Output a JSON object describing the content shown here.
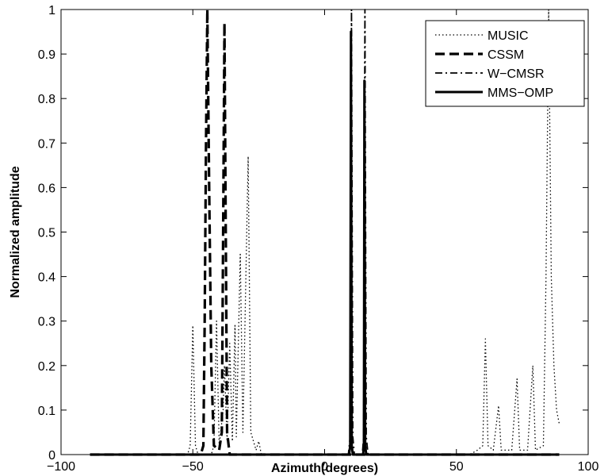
{
  "chart_data": {
    "type": "line",
    "title": "",
    "xlabel": "Azimuth(degrees)",
    "ylabel": "Normalized amplitude",
    "xlim": [
      -100,
      100
    ],
    "ylim": [
      0,
      1
    ],
    "xticks": [
      -100,
      -50,
      0,
      50,
      100
    ],
    "yticks": [
      0,
      0.1,
      0.2,
      0.3,
      0.4,
      0.5,
      0.6,
      0.7,
      0.8,
      0.9,
      1
    ],
    "legend_position": "top-right",
    "grid": false,
    "series": [
      {
        "name": "MUSIC",
        "style": "dotted",
        "color": "#000000",
        "points": [
          [
            -89,
            0.0
          ],
          [
            -52,
            0.0
          ],
          [
            -51,
            0.02
          ],
          [
            -50,
            0.29
          ],
          [
            -49,
            0.02
          ],
          [
            -48,
            0.0
          ],
          [
            -43,
            0.0
          ],
          [
            -42,
            0.02
          ],
          [
            -41,
            0.3
          ],
          [
            -40,
            0.02
          ],
          [
            -38.5,
            0.1
          ],
          [
            -38,
            0.2
          ],
          [
            -37,
            0.03
          ],
          [
            -36,
            0.25
          ],
          [
            -35,
            0.03
          ],
          [
            -34,
            0.29
          ],
          [
            -33.5,
            0.04
          ],
          [
            -32,
            0.45
          ],
          [
            -31,
            0.05
          ],
          [
            -29,
            0.67
          ],
          [
            -28,
            0.05
          ],
          [
            -26,
            0.01
          ],
          [
            -25,
            0.03
          ],
          [
            -24,
            0.0
          ],
          [
            55,
            0.0
          ],
          [
            58,
            0.01
          ],
          [
            60,
            0.02
          ],
          [
            61,
            0.26
          ],
          [
            62,
            0.02
          ],
          [
            64,
            0.01
          ],
          [
            66,
            0.11
          ],
          [
            67,
            0.01
          ],
          [
            70,
            0.01
          ],
          [
            71,
            0.01
          ],
          [
            73,
            0.17
          ],
          [
            74,
            0.01
          ],
          [
            77,
            0.01
          ],
          [
            79,
            0.2
          ],
          [
            80,
            0.01
          ],
          [
            83,
            0.02
          ],
          [
            84,
            0.4
          ],
          [
            85,
            1.0
          ],
          [
            86,
            0.4
          ],
          [
            87,
            0.2
          ],
          [
            88,
            0.1
          ],
          [
            89,
            0.07
          ]
        ]
      },
      {
        "name": "CSSM",
        "style": "dashed",
        "color": "#000000",
        "points": [
          [
            -89,
            0.0
          ],
          [
            -47,
            0.0
          ],
          [
            -46,
            0.02
          ],
          [
            -45.5,
            0.3
          ],
          [
            -45,
            0.7
          ],
          [
            -44.5,
            1.0
          ],
          [
            -43.8,
            0.6
          ],
          [
            -43,
            0.2
          ],
          [
            -42,
            0.02
          ],
          [
            -40,
            0.01
          ],
          [
            -39,
            0.05
          ],
          [
            -38.5,
            0.5
          ],
          [
            -38,
            0.97
          ],
          [
            -37.5,
            0.5
          ],
          [
            -37,
            0.05
          ],
          [
            -36,
            0.0
          ],
          [
            89,
            0.0
          ]
        ]
      },
      {
        "name": "W−CMSR",
        "style": "dashdot",
        "color": "#000000",
        "points": [
          [
            -89,
            0.0
          ],
          [
            9,
            0.0
          ],
          [
            9.7,
            0.04
          ],
          [
            10.2,
            1.0
          ],
          [
            10.7,
            0.04
          ],
          [
            11.3,
            0.0
          ],
          [
            14.3,
            0.0
          ],
          [
            14.8,
            0.04
          ],
          [
            15.3,
            1.0
          ],
          [
            15.8,
            0.04
          ],
          [
            16.5,
            0.0
          ],
          [
            89,
            0.0
          ]
        ]
      },
      {
        "name": "MMS−OMP",
        "style": "solid",
        "color": "#000000",
        "points": [
          [
            -89,
            0.0
          ],
          [
            9.3,
            0.0
          ],
          [
            9.7,
            0.02
          ],
          [
            10,
            0.95
          ],
          [
            10.3,
            0.02
          ],
          [
            10.7,
            0.0
          ],
          [
            14.6,
            0.0
          ],
          [
            14.9,
            0.02
          ],
          [
            15.1,
            0.84
          ],
          [
            15.4,
            0.02
          ],
          [
            15.8,
            0.0
          ],
          [
            89,
            0.0
          ]
        ]
      }
    ]
  }
}
